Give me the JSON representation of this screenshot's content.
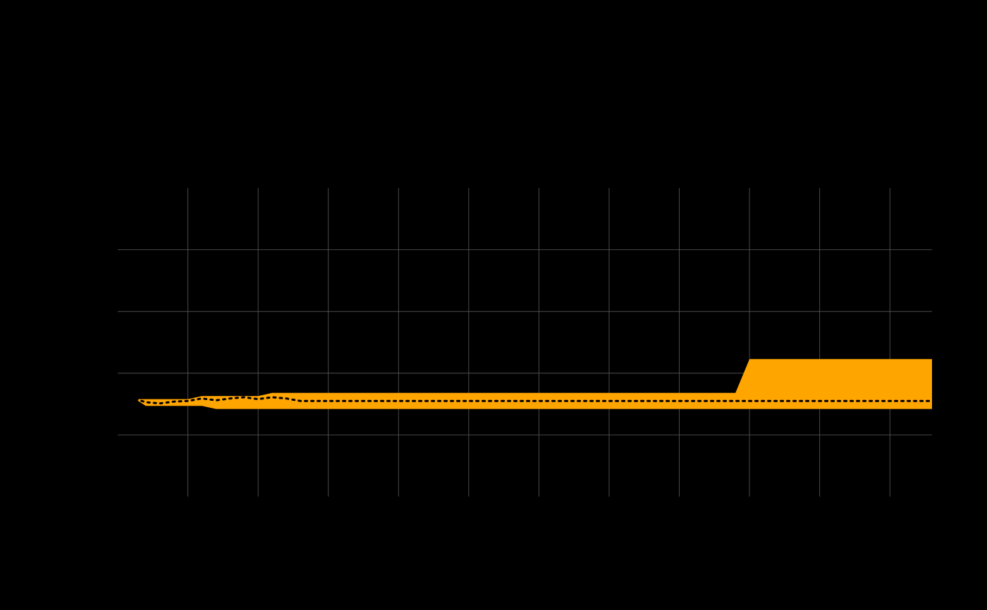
{
  "chart_data": {
    "type": "area",
    "grid": true,
    "legend": "none",
    "background_color": "#000000",
    "band_color": "#FFA500",
    "median_color": "#000000",
    "xlim": [
      0,
      58
    ],
    "ylim": [
      -1,
      4
    ],
    "x_gridlines": [
      5,
      10,
      15,
      20,
      25,
      30,
      35,
      40,
      45,
      50,
      55
    ],
    "y_gridlines": [
      0,
      1,
      2,
      3
    ],
    "series": [
      {
        "role": "band",
        "x": [
          1.25,
          2,
          3,
          4,
          5,
          6,
          7,
          8,
          9,
          10,
          11,
          12,
          13,
          14,
          15,
          20,
          25,
          30,
          35,
          40,
          44,
          45,
          50,
          55,
          58
        ],
        "upper": [
          0.58,
          0.58,
          0.58,
          0.58,
          0.58,
          0.63,
          0.63,
          0.63,
          0.63,
          0.63,
          0.68,
          0.68,
          0.68,
          0.68,
          0.68,
          0.68,
          0.68,
          0.68,
          0.68,
          0.68,
          0.68,
          1.23,
          1.23,
          1.23,
          1.23
        ],
        "lower": [
          0.58,
          0.47,
          0.47,
          0.47,
          0.47,
          0.47,
          0.42,
          0.42,
          0.42,
          0.42,
          0.42,
          0.42,
          0.42,
          0.42,
          0.42,
          0.42,
          0.42,
          0.42,
          0.42,
          0.42,
          0.42,
          0.42,
          0.42,
          0.42,
          0.42
        ]
      },
      {
        "role": "median",
        "x": [
          1.25,
          2,
          3,
          4,
          5,
          6,
          7,
          8,
          9,
          10,
          11,
          12,
          13,
          15,
          20,
          25,
          30,
          35,
          40,
          45,
          50,
          55,
          58
        ],
        "values": [
          0.58,
          0.53,
          0.51,
          0.54,
          0.55,
          0.59,
          0.56,
          0.59,
          0.61,
          0.58,
          0.61,
          0.59,
          0.55,
          0.55,
          0.55,
          0.55,
          0.55,
          0.55,
          0.55,
          0.55,
          0.55,
          0.55,
          0.55
        ]
      }
    ]
  }
}
